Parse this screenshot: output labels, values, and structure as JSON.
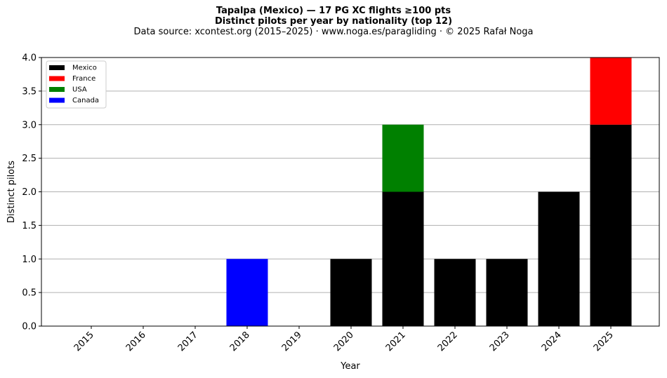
{
  "chart_data": {
    "type": "bar",
    "stacked": true,
    "title": "Tapalpa (Mexico)  —  17 PG XC flights ≥100 pts",
    "subtitle": "Distinct pilots per year by nationality (top 12)",
    "source": "Data source: xcontest.org (2015–2025)  ·  www.noga.es/paragliding  ·  © 2025 Rafał Noga",
    "xlabel": "Year",
    "ylabel": "Distinct pilots",
    "ylim": [
      0,
      4
    ],
    "yticks": [
      "0.0",
      "0.5",
      "1.0",
      "1.5",
      "2.0",
      "2.5",
      "3.0",
      "3.5",
      "4.0"
    ],
    "categories": [
      "2015",
      "2016",
      "2017",
      "2018",
      "2019",
      "2020",
      "2021",
      "2022",
      "2023",
      "2024",
      "2025"
    ],
    "series": [
      {
        "name": "Mexico",
        "color": "#000000",
        "values": [
          0,
          0,
          0,
          0,
          0,
          1,
          2,
          1,
          1,
          2,
          3
        ]
      },
      {
        "name": "France",
        "color": "#ff0000",
        "values": [
          0,
          0,
          0,
          0,
          0,
          0,
          0,
          0,
          0,
          0,
          1
        ]
      },
      {
        "name": "USA",
        "color": "#008000",
        "values": [
          0,
          0,
          0,
          0,
          0,
          0,
          1,
          0,
          0,
          0,
          0
        ]
      },
      {
        "name": "Canada",
        "color": "#0000ff",
        "values": [
          0,
          0,
          0,
          1,
          0,
          0,
          0,
          0,
          0,
          0,
          0
        ]
      }
    ],
    "grid": "y",
    "legend_position": "top-left"
  }
}
